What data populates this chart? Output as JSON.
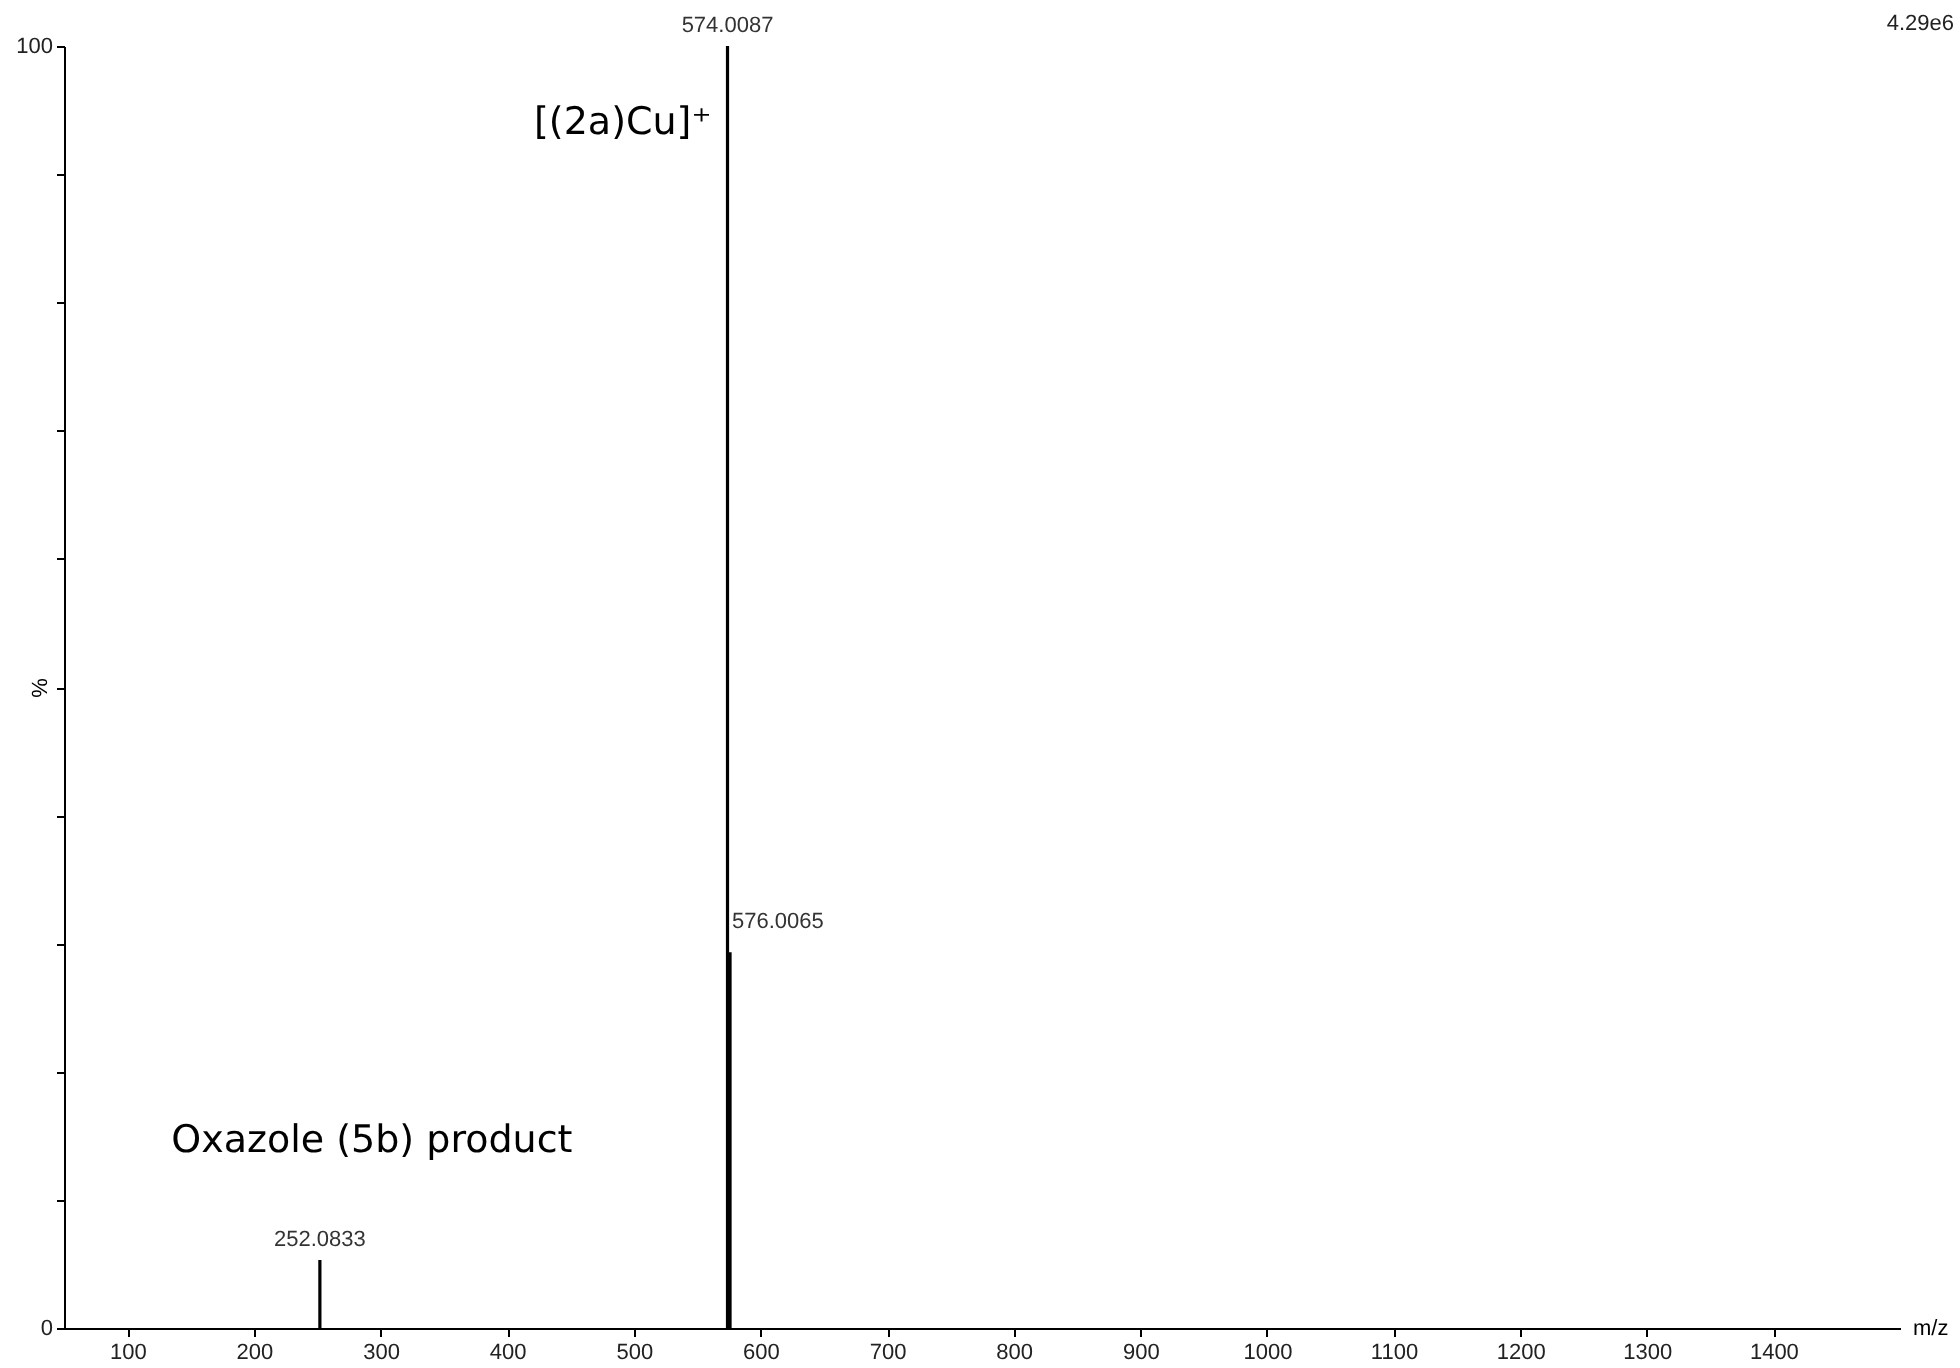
{
  "chart_data": {
    "type": "bar",
    "x": [
      252.0833,
      574.0087,
      576.0065
    ],
    "values": [
      5.3,
      100,
      29.3
    ],
    "color": "#000000",
    "xlabel": "m/z",
    "ylabel": "%",
    "xlim": [
      50,
      1500
    ],
    "ylim": [
      0,
      100
    ],
    "xticks": [
      100,
      200,
      300,
      400,
      500,
      600,
      700,
      800,
      900,
      1000,
      1100,
      1200,
      1300,
      1400
    ],
    "yticks": [
      0,
      {
        "value": 10,
        "label": null
      },
      {
        "value": 20,
        "label": null
      },
      {
        "value": 30,
        "label": null
      },
      {
        "value": 40,
        "label": null
      },
      {
        "value": 50,
        "label": null
      },
      {
        "value": 60,
        "label": null
      },
      {
        "value": 70,
        "label": null
      },
      {
        "value": 80,
        "label": null
      },
      {
        "value": 90,
        "label": null
      },
      100
    ],
    "annotations": [
      {
        "text": "252.0833",
        "x": 252.0833,
        "y": 5.3
      },
      {
        "text": "574.0087",
        "x": 574.0087,
        "y": 100
      },
      {
        "text": "576.0065",
        "x": 576.0065,
        "y": 29.3
      },
      {
        "text": "[(2a)Cu]⁺",
        "x": 574.0087,
        "y": 100
      },
      {
        "text": "Oxazole (5b) product",
        "x": 252.0833,
        "y": 5.3
      },
      "4.29e6"
    ],
    "grid": false
  }
}
